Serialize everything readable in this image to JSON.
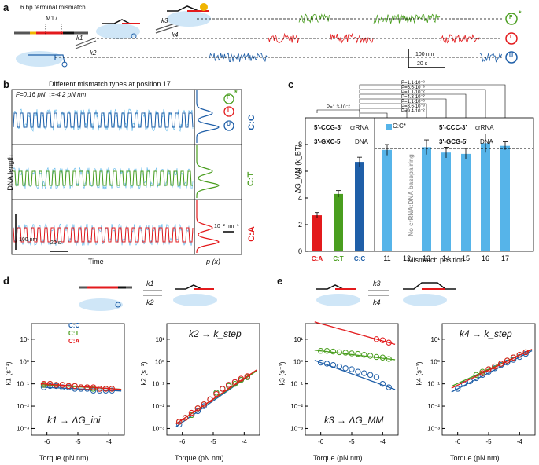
{
  "panels": {
    "a": "a",
    "b": "b",
    "c": "c",
    "d": "d",
    "e": "e"
  },
  "colors": {
    "red": "#e31a1c",
    "green": "#4a9e1f",
    "blue": "#1f5fa8",
    "lightblue": "#56b4e9",
    "gray": "#888888"
  },
  "a": {
    "title": "6 bp terminal mismatch",
    "m17": "M17",
    "k1": "k1",
    "k2": "k2",
    "k3": "k3",
    "k4": "k4",
    "states": {
      "F": "F",
      "I": "I",
      "U": "U",
      "star": "*"
    },
    "scale_y": "100 nm",
    "scale_x": "20 s"
  },
  "b": {
    "title": "Different mismatch types at position 17",
    "params": "F=0.16 pN, τ=-4.2 pN nm",
    "ylabel": "DNA length",
    "xlabel": "Time",
    "plabel": "p (x)",
    "rows": [
      "C:C",
      "C:T",
      "C:A"
    ],
    "scale_y": "100 nm",
    "scale_x": "20 s",
    "scale_p": "10⁻² nm⁻¹",
    "states": {
      "F": "F",
      "I": "I",
      "U": "U",
      "star": "*"
    }
  },
  "c": {
    "ylabel": "ΔG_MM (k_BT)",
    "xlabel": "Mismatch position",
    "legend": "C:C*",
    "crRNA1": "5'-CCG-3'",
    "dna1": "3'-GXC-5'",
    "crRNA2": "5'-CCC-3'",
    "dna2": "3'-GCG-5'",
    "crRNA_label": "crRNA",
    "dna_label": "DNA",
    "no_basepair": "No crRNA:DNA basepairing",
    "pvals": [
      "P=1.1·10⁻²",
      "P=6.6·10⁻³",
      "P=1.1·10⁻²",
      "P=4.3·10⁻²",
      "P=1.1·10⁻²",
      "P=8.6·10⁻³",
      "P=9.4·10⁻²",
      "P=1.3·10⁻²"
    ],
    "chart_data": {
      "type": "bar",
      "categories": [
        "C:A",
        "C:T",
        "C:C",
        "11",
        "12",
        "13",
        "14",
        "15",
        "16",
        "17"
      ],
      "values": [
        2.7,
        4.3,
        6.7,
        7.6,
        null,
        7.8,
        7.4,
        7.3,
        8.1,
        7.9
      ],
      "errors": [
        0.2,
        0.25,
        0.35,
        0.4,
        null,
        0.55,
        0.4,
        0.4,
        0.7,
        0.3
      ],
      "ylim": [
        0,
        10
      ],
      "yticks": [
        0,
        2,
        4,
        6,
        8
      ],
      "dashed_line": 7.7
    }
  },
  "d": {
    "k1": "k1",
    "k2": "k2",
    "legend": [
      "C:C",
      "C:T",
      "C:A"
    ],
    "left_ylabel": "k1 (s⁻¹)",
    "right_ylabel": "k2 (s⁻¹)",
    "left_note": "k1 → ΔG_ini",
    "right_note": "k2 → k_step",
    "xlabel": "Torque (pN nm)",
    "xticks": [
      "-6",
      "-5",
      "-4"
    ],
    "yticks": [
      "10⁻³",
      "10⁻²",
      "10⁻¹",
      "10⁰",
      "10¹"
    ],
    "chart_data": [
      {
        "type": "scatter",
        "title": "k1",
        "x": [
          -6.1,
          -5.9,
          -5.7,
          -5.5,
          -5.3,
          -5.1,
          -4.9,
          -4.7,
          -4.5,
          -4.3,
          -4.1,
          -3.9
        ],
        "series": [
          {
            "name": "C:C",
            "values": [
              0.07,
              0.08,
              0.08,
              0.07,
              0.07,
              0.06,
              0.06,
              0.06,
              0.05,
              0.05,
              0.05,
              0.05
            ]
          },
          {
            "name": "C:T",
            "values": [
              0.09,
              0.1,
              0.09,
              0.09,
              0.08,
              0.08,
              0.07,
              0.07,
              0.06,
              0.06,
              0.06,
              0.06
            ]
          },
          {
            "name": "C:A",
            "values": [
              0.1,
              0.1,
              0.09,
              0.09,
              0.08,
              0.08,
              0.07,
              0.07,
              0.07,
              0.06,
              0.06,
              0.06
            ]
          }
        ],
        "xlim": [
          -6.5,
          -3.5
        ],
        "ylim": [
          0.0005,
          50
        ]
      },
      {
        "type": "scatter",
        "title": "k2",
        "x": [
          -6.1,
          -5.9,
          -5.7,
          -5.5,
          -5.3,
          -5.1,
          -4.9,
          -4.7,
          -4.5,
          -4.3,
          -4.1,
          -3.9
        ],
        "series": [
          {
            "name": "C:C",
            "values": [
              0.0015,
              0.003,
              0.004,
              0.006,
              0.01,
              0.02,
              0.04,
              0.06,
              0.09,
              0.12,
              0.15,
              0.2
            ]
          },
          {
            "name": "C:T",
            "values": [
              0.002,
              0.003,
              0.004,
              0.008,
              0.012,
              0.02,
              0.04,
              0.06,
              0.08,
              0.1,
              0.15,
              0.2
            ]
          },
          {
            "name": "C:A",
            "values": [
              0.002,
              0.003,
              0.005,
              0.008,
              0.012,
              0.02,
              0.035,
              0.06,
              0.09,
              0.12,
              0.17,
              0.22
            ]
          }
        ],
        "xlim": [
          -6.5,
          -3.5
        ],
        "ylim": [
          0.0005,
          50
        ]
      }
    ]
  },
  "e": {
    "k3": "k3",
    "k4": "k4",
    "left_ylabel": "k3 (s⁻¹)",
    "right_ylabel": "k4 (s⁻¹)",
    "left_note": "k3 → ΔG_MM",
    "right_note": "k4 → k_step",
    "xlabel": "Torque (pN nm)",
    "xticks": [
      "-6",
      "-5",
      "-4"
    ],
    "yticks": [
      "10⁻³",
      "10⁻²",
      "10⁻¹",
      "10⁰",
      "10¹"
    ],
    "chart_data": [
      {
        "type": "scatter",
        "title": "k3",
        "x": [
          -6.0,
          -5.8,
          -5.6,
          -5.4,
          -5.2,
          -5.0,
          -4.8,
          -4.6,
          -4.4,
          -4.2,
          -4.0,
          -3.8
        ],
        "series": [
          {
            "name": "C:C",
            "values": [
              0.9,
              0.8,
              0.7,
              0.6,
              0.5,
              0.45,
              0.35,
              0.3,
              0.25,
              0.2,
              0.1,
              0.07
            ]
          },
          {
            "name": "C:T",
            "values": [
              3,
              3,
              2.8,
              2.6,
              2.5,
              2.3,
              2.2,
              2,
              1.8,
              1.6,
              1.5,
              1.3
            ]
          },
          {
            "name": "C:A",
            "values": [
              null,
              null,
              null,
              null,
              null,
              null,
              null,
              null,
              null,
              10,
              9,
              7
            ]
          }
        ],
        "xlim": [
          -6.5,
          -3.5
        ],
        "ylim": [
          0.0005,
          50
        ]
      },
      {
        "type": "scatter",
        "title": "k4",
        "x": [
          -6.0,
          -5.8,
          -5.6,
          -5.4,
          -5.2,
          -5.0,
          -4.8,
          -4.6,
          -4.4,
          -4.2,
          -4.0,
          -3.8
        ],
        "series": [
          {
            "name": "C:C",
            "values": [
              0.06,
              0.1,
              0.13,
              0.18,
              0.25,
              0.35,
              0.5,
              0.7,
              0.9,
              1.2,
              1.6,
              2.2
            ]
          },
          {
            "name": "C:T",
            "values": [
              null,
              null,
              null,
              0.25,
              0.35,
              0.45,
              0.6,
              0.8,
              1.1,
              1.5,
              2,
              2.6
            ]
          },
          {
            "name": "C:A",
            "values": [
              null,
              null,
              null,
              null,
              0.3,
              0.45,
              0.6,
              0.8,
              1.1,
              1.5,
              2,
              2.6
            ]
          }
        ],
        "xlim": [
          -6.5,
          -3.5
        ],
        "ylim": [
          0.0005,
          50
        ]
      }
    ]
  }
}
